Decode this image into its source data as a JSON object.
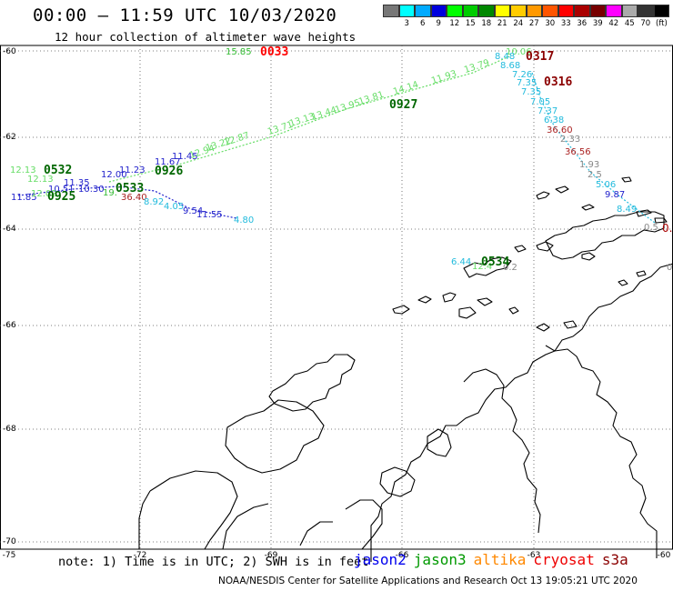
{
  "header": {
    "title": "00:00 – 11:59 UTC 10/03/2020",
    "subtitle": "12 hour collection of altimeter wave heights"
  },
  "colorbar": {
    "unit_label": "(ft)",
    "swatches": [
      {
        "color": "#777777",
        "label": ""
      },
      {
        "color": "#00ffff",
        "label": "3"
      },
      {
        "color": "#00aaff",
        "label": "6"
      },
      {
        "color": "#0000dd",
        "label": "9"
      },
      {
        "color": "#00ff00",
        "label": "12"
      },
      {
        "color": "#00cc00",
        "label": "15"
      },
      {
        "color": "#008800",
        "label": "18"
      },
      {
        "color": "#ffff00",
        "label": "21"
      },
      {
        "color": "#ffcc00",
        "label": "24"
      },
      {
        "color": "#ff9900",
        "label": "27"
      },
      {
        "color": "#ff5500",
        "label": "30"
      },
      {
        "color": "#ff0000",
        "label": "33"
      },
      {
        "color": "#aa0000",
        "label": "36"
      },
      {
        "color": "#770000",
        "label": "39"
      },
      {
        "color": "#ff00ff",
        "label": "42"
      },
      {
        "color": "#aaaaaa",
        "label": "45"
      },
      {
        "color": "#333333",
        "label": "70"
      },
      {
        "color": "#000000",
        "label": ""
      }
    ]
  },
  "map": {
    "lat_labels": [
      "-60",
      "-62",
      "-64",
      "-66",
      "-68",
      "-70"
    ],
    "lon_labels": [
      "-75",
      "-72",
      "-69",
      "-66",
      "-63",
      "-60"
    ],
    "track_colors": {
      "jason2": "#0000cc",
      "jason3": "#008800",
      "altika": "#ff8800",
      "cryosat": "#dd0000",
      "s3a": "#8b0000"
    },
    "observations": [
      {
        "text": "15.85",
        "color": "#33bb33"
      },
      {
        "text": "12.13",
        "color": "#66dd66"
      },
      {
        "text": "12.13",
        "color": "#66dd66"
      },
      {
        "text": "11.35",
        "color": "#2222cc"
      },
      {
        "text": "10.51",
        "color": "#2222cc"
      },
      {
        "text": "10.30",
        "color": "#2222cc"
      },
      {
        "text": "12.00",
        "color": "#2222cc"
      },
      {
        "text": "11.23",
        "color": "#2222cc"
      },
      {
        "text": "11.67",
        "color": "#2222cc"
      },
      {
        "text": "11.45",
        "color": "#2222cc"
      },
      {
        "text": "11.85",
        "color": "#2222cc"
      },
      {
        "text": "12.02",
        "color": "#66dd66"
      },
      {
        "text": "19.",
        "color": "#33bb33"
      },
      {
        "text": "36.40",
        "color": "#aa2222"
      },
      {
        "text": "8.92",
        "color": "#22bbdd"
      },
      {
        "text": "4.05",
        "color": "#22bbdd"
      },
      {
        "text": "9.54",
        "color": "#2222cc"
      },
      {
        "text": "11.55",
        "color": "#2222cc"
      },
      {
        "text": "4.80",
        "color": "#22bbdd"
      },
      {
        "text": "12.94",
        "color": "#66dd66"
      },
      {
        "text": "13.22",
        "color": "#66dd66"
      },
      {
        "text": "12.87",
        "color": "#66dd66"
      },
      {
        "text": "13.13",
        "color": "#66dd66"
      },
      {
        "text": "13.71",
        "color": "#66dd66"
      },
      {
        "text": "13.44",
        "color": "#66dd66"
      },
      {
        "text": "13.95",
        "color": "#66dd66"
      },
      {
        "text": "13.81",
        "color": "#66dd66"
      },
      {
        "text": "14.14",
        "color": "#66dd66"
      },
      {
        "text": "11.93",
        "color": "#66dd66"
      },
      {
        "text": "13.79",
        "color": "#66dd66"
      },
      {
        "text": "10.06",
        "color": "#66dd66"
      },
      {
        "text": "8.48",
        "color": "#22bbdd"
      },
      {
        "text": "8.68",
        "color": "#22bbdd"
      },
      {
        "text": "7.26",
        "color": "#22bbdd"
      },
      {
        "text": "7.35",
        "color": "#22bbdd"
      },
      {
        "text": "7.35",
        "color": "#22bbdd"
      },
      {
        "text": "7.05",
        "color": "#22bbdd"
      },
      {
        "text": "7.37",
        "color": "#22bbdd"
      },
      {
        "text": "6.38",
        "color": "#22bbdd"
      },
      {
        "text": "36.60",
        "color": "#aa2222"
      },
      {
        "text": "2.33",
        "color": "#888888"
      },
      {
        "text": "36.56",
        "color": "#aa2222"
      },
      {
        "text": "1.93",
        "color": "#888888"
      },
      {
        "text": "2.5",
        "color": "#888888"
      },
      {
        "text": "5.06",
        "color": "#22bbdd"
      },
      {
        "text": "9.87",
        "color": "#2222cc"
      },
      {
        "text": "8.49",
        "color": "#22bbdd"
      },
      {
        "text": "0.5",
        "color": "#888888"
      },
      {
        "text": "0.",
        "color": "#aa0000"
      },
      {
        "text": "6.44",
        "color": "#22bbdd"
      },
      {
        "text": "12.4",
        "color": "#66dd66"
      },
      {
        "text": "0.2",
        "color": "#888888"
      },
      {
        "text": "0",
        "color": "#888888"
      }
    ],
    "time_labels": [
      {
        "text": "0033",
        "color": "#ff0000"
      },
      {
        "text": "0317",
        "color": "#8b0000"
      },
      {
        "text": "0316",
        "color": "#8b0000"
      },
      {
        "text": "0927",
        "color": "#006600"
      },
      {
        "text": "0532",
        "color": "#006600"
      },
      {
        "text": "0926",
        "color": "#006600"
      },
      {
        "text": "0533",
        "color": "#006600"
      },
      {
        "text": "0925",
        "color": "#006600"
      },
      {
        "text": "0534",
        "color": "#006600"
      }
    ]
  },
  "note": "note: 1) Time is in UTC; 2) SWH is in feet",
  "satellite_legend": [
    {
      "name": "jason2",
      "color": "#0000ee"
    },
    {
      "name": "jason3",
      "color": "#009900"
    },
    {
      "name": "altika",
      "color": "#ff8800"
    },
    {
      "name": "cryosat",
      "color": "#ee0000"
    },
    {
      "name": "s3a",
      "color": "#8b0000"
    }
  ],
  "footer": "NOAA/NESDIS Center for Satellite Applications and Research    Oct 13 19:05:21 UTC 2020"
}
